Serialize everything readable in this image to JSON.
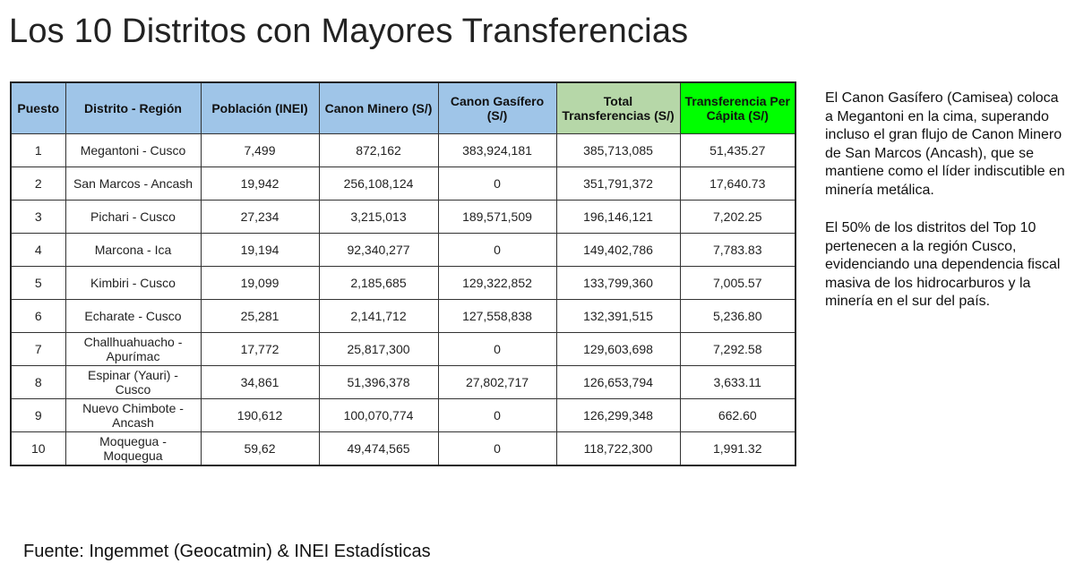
{
  "title": "Los 10 Distritos con Mayores Transferencias",
  "table": {
    "headers": [
      "Puesto",
      "Distrito - Región",
      "Población (INEI)",
      "Canon Minero (S/)",
      "Canon Gasífero (S/)",
      "Total Transferencias (S/)",
      "Transferencia Per Cápita (S/)"
    ],
    "header_colors": {
      "default": "#9fc5e8",
      "total": "#b6d7a8",
      "per_capita": "#00ff00"
    },
    "rows": [
      [
        "1",
        "Megantoni - Cusco",
        "7,499",
        "872,162",
        "383,924,181",
        "385,713,085",
        "51,435.27"
      ],
      [
        "2",
        "San Marcos - Ancash",
        "19,942",
        "256,108,124",
        "0",
        "351,791,372",
        "17,640.73"
      ],
      [
        "3",
        "Pichari - Cusco",
        "27,234",
        "3,215,013",
        "189,571,509",
        "196,146,121",
        "7,202.25"
      ],
      [
        "4",
        "Marcona - Ica",
        "19,194",
        "92,340,277",
        "0",
        "149,402,786",
        "7,783.83"
      ],
      [
        "5",
        "Kimbiri - Cusco",
        "19,099",
        "2,185,685",
        "129,322,852",
        "133,799,360",
        "7,005.57"
      ],
      [
        "6",
        "Echarate - Cusco",
        "25,281",
        "2,141,712",
        "127,558,838",
        "132,391,515",
        "5,236.80"
      ],
      [
        "7",
        "Challhuahuacho - Apurímac",
        "17,772",
        "25,817,300",
        "0",
        "129,603,698",
        "7,292.58"
      ],
      [
        "8",
        "Espinar (Yauri) - Cusco",
        "34,861",
        "51,396,378",
        "27,802,717",
        "126,653,794",
        "3,633.11"
      ],
      [
        "9",
        "Nuevo Chimbote - Ancash",
        "190,612",
        "100,070,774",
        "0",
        "126,299,348",
        "662.60"
      ],
      [
        "10",
        "Moquegua - Moquegua",
        "59,62",
        "49,474,565",
        "0",
        "118,722,300",
        "1,991.32"
      ]
    ]
  },
  "notes": [
    "El Canon Gasífero (Camisea) coloca a Megantoni en la cima, superando incluso el gran flujo de Canon Minero de San Marcos (Ancash), que se mantiene como el líder indiscutible en minería metálica.",
    "El 50% de los distritos del Top 10 pertenecen a la región Cusco, evidenciando una dependencia fiscal masiva de los hidrocarburos y la minería en el sur del país."
  ],
  "source": "Fuente: Ingemmet (Geocatmin) & INEI Estadísticas"
}
